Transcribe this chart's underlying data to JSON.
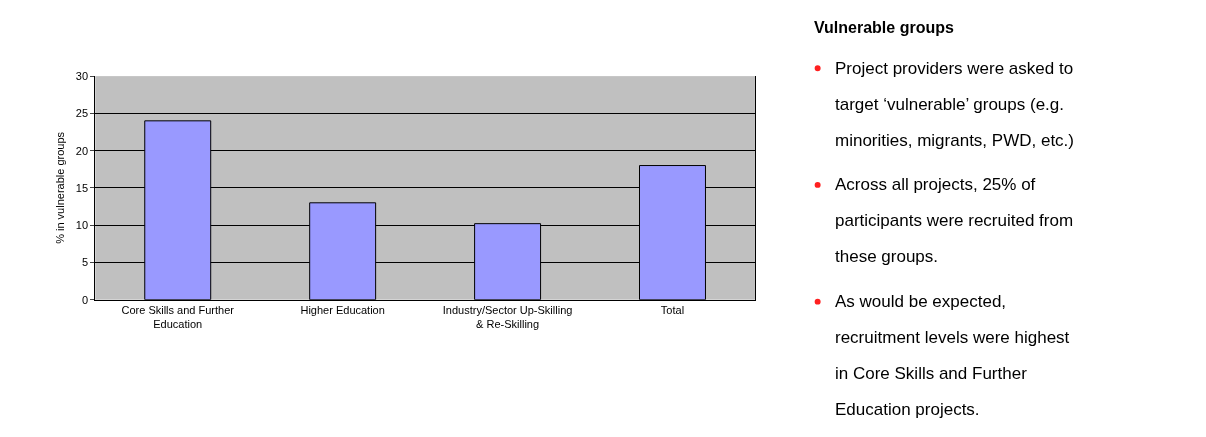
{
  "chart_data": [
    {
      "type": "bar",
      "ylabel": "% in vulnerable groups",
      "categories": [
        "Core Skills and Further Education",
        "Higher Education",
        "Industry/Sector Up-Skilling & Re-Skilling",
        "Total"
      ],
      "values": [
        24,
        13,
        10.2,
        18
      ],
      "color": "#9999ff",
      "ylim": [
        0,
        30
      ],
      "yticks": [
        0,
        5,
        10,
        15,
        20,
        25,
        30
      ],
      "grid": "y"
    },
    {
      "type": "other",
      "title": "Vulnerable groups",
      "annotations": [
        "Project providers were asked to target ‘vulnerable’ groups (e.g. minorities, migrants, PWD, etc.)",
        "Across all projects, 25% of participants were recruited from these groups.",
        "As would be expected, recruitment levels were highest in Core Skills and Further Education projects."
      ]
    }
  ]
}
